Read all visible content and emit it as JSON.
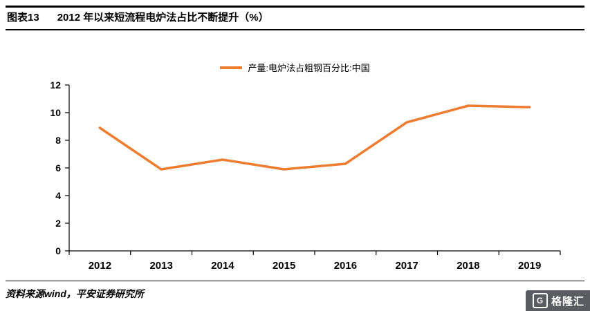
{
  "header": {
    "figure_label": "图表13",
    "title": "2012 年以来短流程电炉法占比不断提升（%）"
  },
  "chart_data": {
    "type": "line",
    "title": "2012 年以来短流程电炉法占比不断提升（%）",
    "legend": "产量:电炉法占粗钢百分比:中国",
    "categories": [
      "2012",
      "2013",
      "2014",
      "2015",
      "2016",
      "2017",
      "2018",
      "2019"
    ],
    "values": [
      8.9,
      5.9,
      6.6,
      5.9,
      6.3,
      9.3,
      10.5,
      10.4
    ],
    "xlabel": "",
    "ylabel": "",
    "ylim": [
      0,
      12
    ],
    "ytick_step": 2,
    "grid": false,
    "legend_position": "top",
    "line_color": "#ED7D31",
    "axis_color": "#000000"
  },
  "footer": {
    "source": "资料来源wind，平安证券研究所"
  },
  "watermark": {
    "logo": "G",
    "text": "格隆汇"
  }
}
